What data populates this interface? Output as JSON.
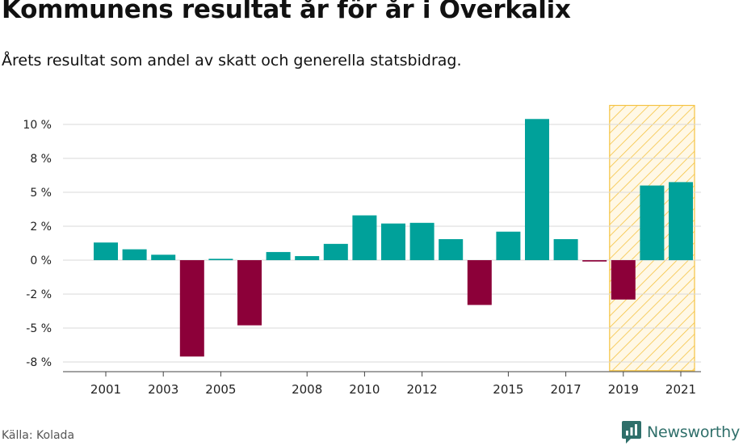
{
  "title": "Kommunens resultat år för år i Overkalix",
  "subtitle": "Årets resultat som andel av skatt och generella statsbidrag.",
  "source": "Källa: Kolada",
  "brand": {
    "name": "Newsworthy",
    "icon": "newsworthy-logo-icon"
  },
  "colors": {
    "positive": "#00a19a",
    "negative": "#8c0039",
    "grid": "#d9d9d9",
    "axis": "#444444",
    "highlight_stroke": "#f5c342",
    "highlight_fill": "#fff8e6"
  },
  "chart_data": {
    "type": "bar",
    "x": [
      2001,
      2002,
      2003,
      2004,
      2005,
      2006,
      2007,
      2008,
      2009,
      2010,
      2011,
      2012,
      2013,
      2014,
      2015,
      2016,
      2017,
      2018,
      2019,
      2020,
      2021
    ],
    "values": [
      1.3,
      0.8,
      0.4,
      -7.1,
      0.1,
      -4.8,
      0.6,
      0.3,
      1.2,
      3.3,
      2.7,
      2.75,
      1.55,
      -3.3,
      2.1,
      10.4,
      1.55,
      -0.1,
      -2.9,
      5.5,
      5.75
    ],
    "x_tick_labels": [
      "2001",
      "2003",
      "2005",
      "2008",
      "2010",
      "2012",
      "2015",
      "2017",
      "2019",
      "2021"
    ],
    "y_tick_labels": [
      {
        "value": 10,
        "label": "10 %"
      },
      {
        "value": 7.5,
        "label": "8 %"
      },
      {
        "value": 5,
        "label": "5 %"
      },
      {
        "value": 2.5,
        "label": "2 %"
      },
      {
        "value": 0,
        "label": "0 %"
      },
      {
        "value": -2.5,
        "label": "-2 %"
      },
      {
        "value": -5,
        "label": "-5 %"
      },
      {
        "value": -7.5,
        "label": "-8 %"
      }
    ],
    "ylim": [
      -8.2,
      11.4
    ],
    "highlight_range": [
      2019,
      2021
    ],
    "grid": true,
    "xlabel": "",
    "ylabel": ""
  }
}
